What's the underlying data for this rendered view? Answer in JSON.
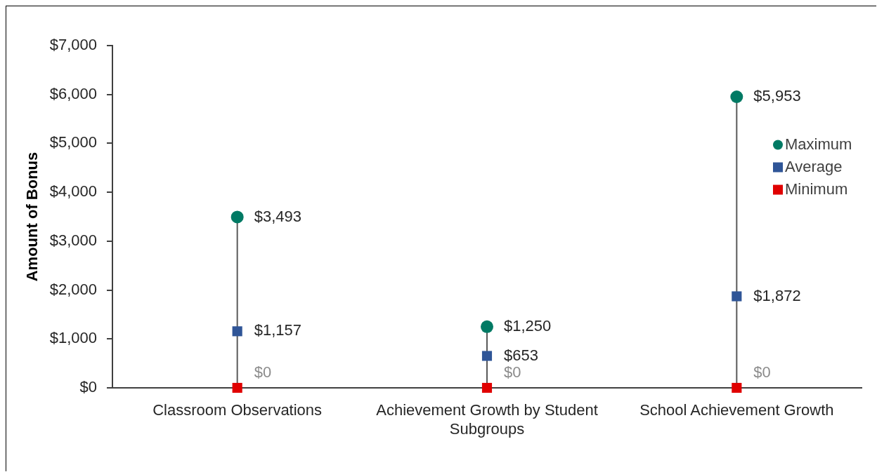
{
  "chart_data": {
    "type": "scatter",
    "ylabel": "Amount of Bonus",
    "categories": [
      "Classroom Observations",
      "Achievement Growth by Student Subgroups",
      "School Achievement Growth"
    ],
    "series": [
      {
        "type": "lollipop",
        "name": "Maximum",
        "color": "#007a64",
        "marker": "circle",
        "values": [
          3493,
          1250,
          5953
        ],
        "value_labels": [
          "$3,493",
          "$1,250",
          "$5,953"
        ]
      },
      {
        "name": "Average",
        "color": "#2f5597",
        "marker": "square",
        "values": [
          1157,
          653,
          1872
        ],
        "value_labels": [
          "$1,157",
          "$653",
          "$1,872"
        ]
      },
      {
        "name": "Minimum",
        "color": "#e00000",
        "marker": "square",
        "values": [
          0,
          0,
          0
        ],
        "value_labels": [
          "$0",
          "$0",
          "$0"
        ]
      }
    ],
    "ylim": [
      0,
      7000
    ],
    "yticks": [
      {
        "value": 0,
        "label": "$0"
      },
      {
        "value": 1000,
        "label": "$1,000"
      },
      {
        "value": 2000,
        "label": "$2,000"
      },
      {
        "value": 3000,
        "label": "$3,000"
      },
      {
        "value": 4000,
        "label": "$4,000"
      },
      {
        "value": 5000,
        "label": "$5,000"
      },
      {
        "value": 6000,
        "label": "$6,000"
      },
      {
        "value": 7000,
        "label": "$7,000"
      }
    ],
    "legend": "right"
  }
}
